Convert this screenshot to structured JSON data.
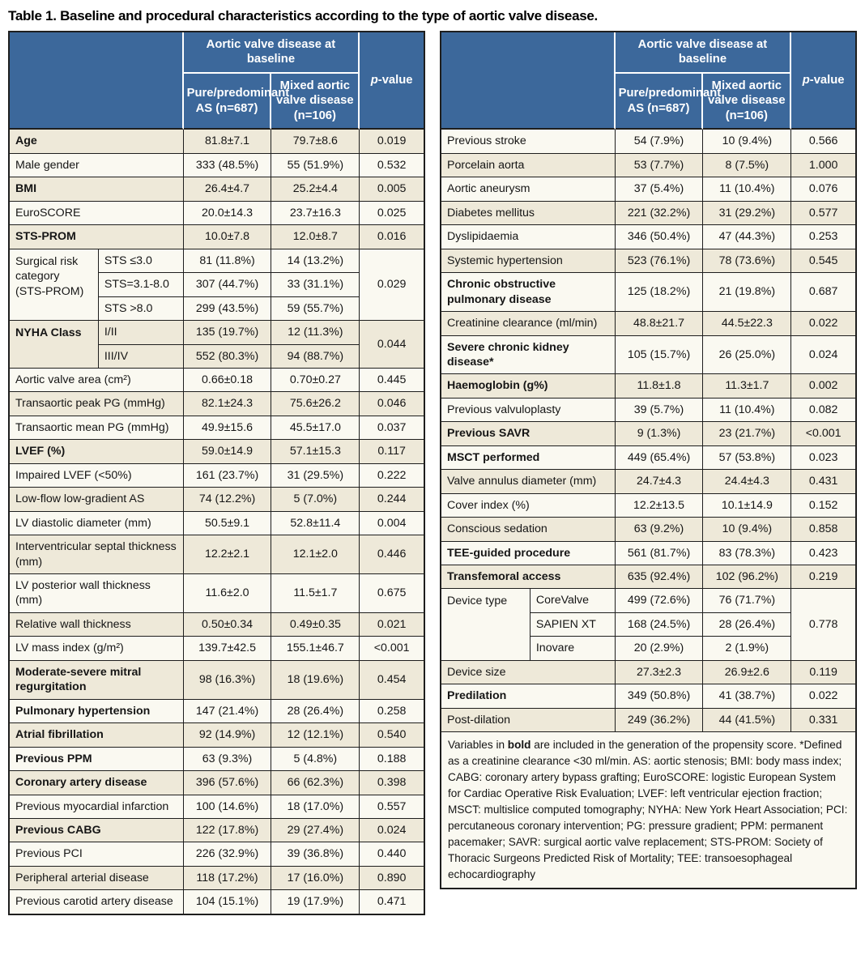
{
  "title": "Table 1. Baseline and procedural characteristics according to the type of aortic valve disease.",
  "colors": {
    "header_blue": "#3c689b",
    "row_cream": "#eee9d9",
    "row_white": "#faf9f1",
    "border_dark": "#1e1e1e",
    "header_divider": "#ffffff"
  },
  "header": {
    "group": "Aortic valve disease at baseline",
    "col1": "Pure/predominant AS (n=687)",
    "col2": "Mixed aortic valve disease (n=106)",
    "p_italic": "p",
    "p_rest": "-value"
  },
  "left_table": {
    "shade_even": true,
    "rows": [
      {
        "label": "Age",
        "bold": true,
        "values": [
          "81.8±7.1",
          "79.7±8.6"
        ],
        "p": "0.019"
      },
      {
        "label": "Male gender",
        "values": [
          "333 (48.5%)",
          "55 (51.9%)"
        ],
        "p": "0.532"
      },
      {
        "label": "BMI",
        "bold": true,
        "values": [
          "26.4±4.7",
          "25.2±4.4"
        ],
        "p": "0.005"
      },
      {
        "label": "EuroSCORE",
        "values": [
          "20.0±14.3",
          "23.7±16.3"
        ],
        "p": "0.025"
      },
      {
        "label": "STS-PROM",
        "bold": true,
        "values": [
          "10.0±7.8",
          "12.0±8.7"
        ],
        "p": "0.016"
      },
      {
        "label": "Surgical risk category (STS-PROM)",
        "p": "0.029",
        "sub": [
          {
            "label": "STS ≤3.0",
            "values": [
              "81 (11.8%)",
              "14 (13.2%)"
            ]
          },
          {
            "label": "STS=3.1-8.0",
            "values": [
              "307 (44.7%)",
              "33 (31.1%)"
            ]
          },
          {
            "label": "STS >8.0",
            "values": [
              "299 (43.5%)",
              "59 (55.7%)"
            ]
          }
        ]
      },
      {
        "label": "NYHA Class",
        "bold": true,
        "p": "0.044",
        "sub": [
          {
            "label": "I/II",
            "values": [
              "135 (19.7%)",
              "12 (11.3%)"
            ]
          },
          {
            "label": "III/IV",
            "values": [
              "552 (80.3%)",
              "94 (88.7%)"
            ]
          }
        ]
      },
      {
        "label": "Aortic valve area (cm²)",
        "values": [
          "0.66±0.18",
          "0.70±0.27"
        ],
        "p": "0.445"
      },
      {
        "label": "Transaortic peak PG (mmHg)",
        "values": [
          "82.1±24.3",
          "75.6±26.2"
        ],
        "p": "0.046"
      },
      {
        "label": "Transaortic mean PG (mmHg)",
        "values": [
          "49.9±15.6",
          "45.5±17.0"
        ],
        "p": "0.037"
      },
      {
        "label": "LVEF (%)",
        "bold": true,
        "values": [
          "59.0±14.9",
          "57.1±15.3"
        ],
        "p": "0.117"
      },
      {
        "label": "Impaired LVEF (<50%)",
        "values": [
          "161 (23.7%)",
          "31 (29.5%)"
        ],
        "p": "0.222"
      },
      {
        "label": "Low-flow low-gradient AS",
        "values": [
          "74 (12.2%)",
          "5 (7.0%)"
        ],
        "p": "0.244"
      },
      {
        "label": "LV diastolic diameter (mm)",
        "values": [
          "50.5±9.1",
          "52.8±11.4"
        ],
        "p": "0.004"
      },
      {
        "label": "Interventricular septal thickness (mm)",
        "values": [
          "12.2±2.1",
          "12.1±2.0"
        ],
        "p": "0.446"
      },
      {
        "label": "LV posterior wall thickness (mm)",
        "values": [
          "11.6±2.0",
          "11.5±1.7"
        ],
        "p": "0.675"
      },
      {
        "label": "Relative wall thickness",
        "values": [
          "0.50±0.34",
          "0.49±0.35"
        ],
        "p": "0.021"
      },
      {
        "label": "LV mass index (g/m²)",
        "values": [
          "139.7±42.5",
          "155.1±46.7"
        ],
        "p": "<0.001"
      },
      {
        "label": "Moderate-severe mitral regurgitation",
        "bold": true,
        "values": [
          "98 (16.3%)",
          "18 (19.6%)"
        ],
        "p": "0.454"
      },
      {
        "label": "Pulmonary hypertension",
        "bold": true,
        "values": [
          "147 (21.4%)",
          "28 (26.4%)"
        ],
        "p": "0.258"
      },
      {
        "label": "Atrial fibrillation",
        "bold": true,
        "values": [
          "92 (14.9%)",
          "12 (12.1%)"
        ],
        "p": "0.540"
      },
      {
        "label": "Previous PPM",
        "bold": true,
        "values": [
          "63 (9.3%)",
          "5 (4.8%)"
        ],
        "p": "0.188"
      },
      {
        "label": "Coronary artery disease",
        "bold": true,
        "values": [
          "396 (57.6%)",
          "66 (62.3%)"
        ],
        "p": "0.398"
      },
      {
        "label": "Previous myocardial infarction",
        "values": [
          "100 (14.6%)",
          "18 (17.0%)"
        ],
        "p": "0.557"
      },
      {
        "label": "Previous CABG",
        "bold": true,
        "values": [
          "122 (17.8%)",
          "29 (27.4%)"
        ],
        "p": "0.024"
      },
      {
        "label": "Previous PCI",
        "values": [
          "226 (32.9%)",
          "39 (36.8%)"
        ],
        "p": "0.440"
      },
      {
        "label": "Peripheral arterial disease",
        "values": [
          "118 (17.2%)",
          "17 (16.0%)"
        ],
        "p": "0.890"
      },
      {
        "label": "Previous carotid artery disease",
        "values": [
          "104 (15.1%)",
          "19 (17.9%)"
        ],
        "p": "0.471"
      }
    ]
  },
  "right_table": {
    "shade_even": false,
    "rows": [
      {
        "label": "Previous stroke",
        "values": [
          "54 (7.9%)",
          "10 (9.4%)"
        ],
        "p": "0.566"
      },
      {
        "label": "Porcelain aorta",
        "values": [
          "53 (7.7%)",
          "8 (7.5%)"
        ],
        "p": "1.000"
      },
      {
        "label": "Aortic aneurysm",
        "values": [
          "37 (5.4%)",
          "11 (10.4%)"
        ],
        "p": "0.076"
      },
      {
        "label": "Diabetes mellitus",
        "values": [
          "221 (32.2%)",
          "31 (29.2%)"
        ],
        "p": "0.577"
      },
      {
        "label": "Dyslipidaemia",
        "values": [
          "346 (50.4%)",
          "47 (44.3%)"
        ],
        "p": "0.253"
      },
      {
        "label": "Systemic hypertension",
        "values": [
          "523 (76.1%)",
          "78 (73.6%)"
        ],
        "p": "0.545"
      },
      {
        "label": "Chronic obstructive pulmonary disease",
        "bold": true,
        "values": [
          "125 (18.2%)",
          "21 (19.8%)"
        ],
        "p": "0.687"
      },
      {
        "label": "Creatinine clearance (ml/min)",
        "values": [
          "48.8±21.7",
          "44.5±22.3"
        ],
        "p": "0.022"
      },
      {
        "label": "Severe chronic kidney disease*",
        "bold": true,
        "values": [
          "105 (15.7%)",
          "26 (25.0%)"
        ],
        "p": "0.024"
      },
      {
        "label": "Haemoglobin (g%)",
        "bold": true,
        "values": [
          "11.8±1.8",
          "11.3±1.7"
        ],
        "p": "0.002"
      },
      {
        "label": "Previous valvuloplasty",
        "values": [
          "39 (5.7%)",
          "11 (10.4%)"
        ],
        "p": "0.082"
      },
      {
        "label": "Previous SAVR",
        "bold": true,
        "values": [
          "9 (1.3%)",
          "23 (21.7%)"
        ],
        "p": "<0.001"
      },
      {
        "label": "MSCT performed",
        "bold": true,
        "values": [
          "449 (65.4%)",
          "57 (53.8%)"
        ],
        "p": "0.023"
      },
      {
        "label": "Valve annulus diameter (mm)",
        "values": [
          "24.7±4.3",
          "24.4±4.3"
        ],
        "p": "0.431"
      },
      {
        "label": "Cover index (%)",
        "values": [
          "12.2±13.5",
          "10.1±14.9"
        ],
        "p": "0.152"
      },
      {
        "label": "Conscious sedation",
        "values": [
          "63 (9.2%)",
          "10 (9.4%)"
        ],
        "p": "0.858"
      },
      {
        "label": "TEE-guided procedure",
        "bold": true,
        "values": [
          "561 (81.7%)",
          "83 (78.3%)"
        ],
        "p": "0.423"
      },
      {
        "label": "Transfemoral access",
        "bold": true,
        "values": [
          "635 (92.4%)",
          "102 (96.2%)"
        ],
        "p": "0.219"
      },
      {
        "label": "Device type",
        "p": "0.778",
        "sub": [
          {
            "label": "CoreValve",
            "values": [
              "499 (72.6%)",
              "76 (71.7%)"
            ]
          },
          {
            "label": "SAPIEN XT",
            "values": [
              "168 (24.5%)",
              "28 (26.4%)"
            ]
          },
          {
            "label": "Inovare",
            "values": [
              "20 (2.9%)",
              "2 (1.9%)"
            ]
          }
        ]
      },
      {
        "label": "Device size",
        "values": [
          "27.3±2.3",
          "26.9±2.6"
        ],
        "p": "0.119"
      },
      {
        "label": "Predilation",
        "bold": true,
        "values": [
          "349 (50.8%)",
          "41 (38.7%)"
        ],
        "p": "0.022"
      },
      {
        "label": "Post-dilation",
        "values": [
          "249 (36.2%)",
          "44 (41.5%)"
        ],
        "p": "0.331"
      }
    ],
    "footnote": {
      "pre": "Variables in ",
      "bold": "bold",
      "post": " are included in the generation of the propensity score. *Defined as a creatinine clearance <30 ml/min. AS: aortic stenosis; BMI: body mass index; CABG: coronary artery bypass grafting; EuroSCORE: logistic European System for Cardiac Operative Risk Evaluation; LVEF: left ventricular ejection fraction; MSCT: multislice computed tomography; NYHA: New York Heart Association; PCI: percutaneous coronary intervention; PG: pressure gradient; PPM: permanent pacemaker; SAVR: surgical aortic valve replacement; STS-PROM: Society of Thoracic Surgeons Predicted Risk of Mortality; TEE: transoesophageal echocardiography"
    }
  }
}
